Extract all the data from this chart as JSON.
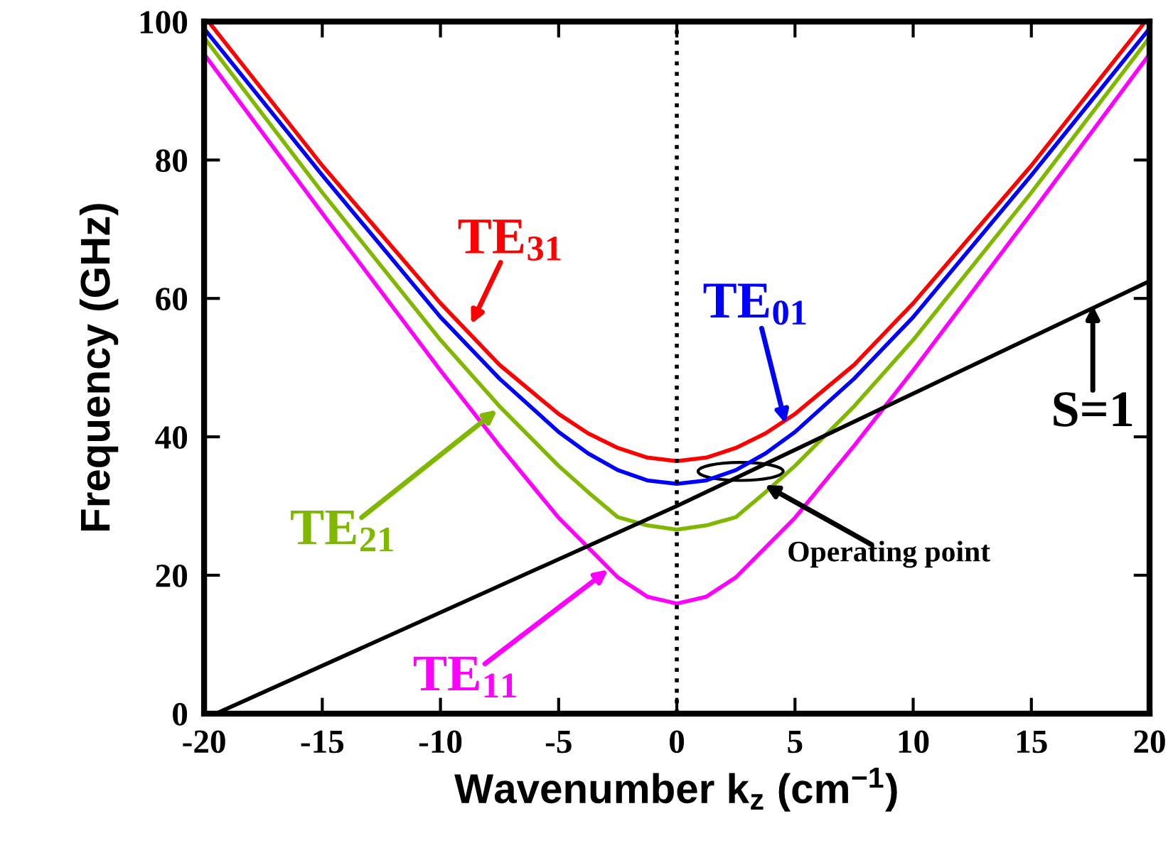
{
  "chart_data": {
    "type": "line",
    "xlabel": "Wavenumber k$_{z}$ (cm$^{−1}$)",
    "ylabel": "Frequency (GHz)",
    "xlim": [
      -20,
      20
    ],
    "ylim": [
      0,
      100
    ],
    "xticks": [
      -20,
      -15,
      -10,
      -5,
      0,
      5,
      10,
      15,
      20
    ],
    "yticks": [
      0,
      20,
      40,
      60,
      80,
      100
    ],
    "grid": false,
    "legend": false,
    "marker": "none",
    "line_style": "solid",
    "series": [
      {
        "color": "#ff0000",
        "x": [
          -19.7,
          -15,
          -10,
          -7.5,
          -5,
          -3.75,
          -2.5,
          -1.25,
          0,
          1.25,
          2.5,
          3.75,
          5,
          7.5,
          10,
          15,
          19.7
        ],
        "values": [
          99.5,
          79.2,
          59.3,
          50.4,
          43.3,
          40.5,
          38.4,
          37.0,
          36.5,
          37.0,
          38.4,
          40.5,
          43.3,
          50.4,
          59.3,
          79.2,
          99.5
        ]
      },
      {
        "color": "#0000ff",
        "x": [
          -20,
          -15,
          -10,
          -7.5,
          -5,
          -3.75,
          -2.5,
          -1.25,
          0,
          1.25,
          2.5,
          3.75,
          5,
          7.5,
          10,
          15,
          20
        ],
        "values": [
          99,
          77.8,
          57.3,
          48.4,
          40.7,
          37.6,
          35.2,
          33.7,
          33.2,
          33.7,
          35.2,
          37.6,
          40.7,
          48.4,
          57.3,
          77.8,
          99
        ]
      },
      {
        "color": "#80b800",
        "x": [
          -20,
          -15,
          -10,
          -7.5,
          -5,
          -3.75,
          -2.5,
          -1.25,
          0,
          1.25,
          2.5,
          3.75,
          5,
          7.5,
          10,
          15,
          20
        ],
        "values": [
          97.7,
          75.3,
          54.0,
          44.4,
          35.8,
          32.0,
          28.4,
          27.2,
          26.6,
          27.2,
          28.4,
          32.0,
          35.8,
          44.4,
          54.0,
          75.3,
          97.7
        ]
      },
      {
        "color": "#ff00ff",
        "x": [
          -20,
          -15,
          -10,
          -7.5,
          -5,
          -3.75,
          -2.5,
          -1.25,
          0,
          1.25,
          2.5,
          3.75,
          5,
          7.5,
          10,
          15,
          20
        ],
        "values": [
          95.3,
          72.3,
          49.6,
          38.7,
          28.3,
          24.0,
          19.7,
          16.9,
          15.9,
          16.9,
          19.7,
          24.0,
          28.3,
          38.7,
          49.6,
          72.3,
          95.3
        ]
      },
      {
        "color": "#000000",
        "x": [
          -19.5,
          0,
          20
        ],
        "values": [
          0,
          30,
          62.5
        ]
      }
    ],
    "ref_lines": [
      {
        "axis": "x",
        "value": 0,
        "color": "#000000",
        "line_style": "dotted"
      }
    ],
    "annotations": [
      {
        "text": "TE$_{31}$",
        "x": -8.7,
        "y": 56.3
      },
      {
        "text": "TE$_{01}$",
        "x": 4.6,
        "y": 41.9
      },
      {
        "text": "TE$_{21}$",
        "x": -7.6,
        "y": 43.9
      },
      {
        "text": "TE$_{11}$",
        "x": -2.9,
        "y": 20.8
      },
      {
        "text": "S=1",
        "x": 17.6,
        "y": 59
      },
      {
        "text": "Operating point",
        "x": 2.7,
        "y": 35
      }
    ]
  }
}
